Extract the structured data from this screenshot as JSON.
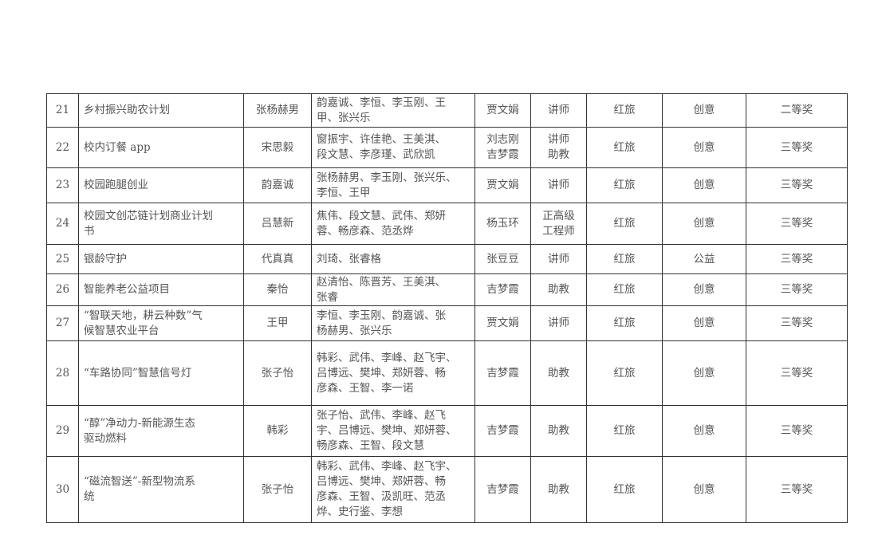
{
  "rows": [
    {
      "no": "21",
      "project": "乡村振兴助农计划",
      "leader": "张杨赫男",
      "members": "韵嘉诚、李恒、李玉刚、王\n甲、张兴乐",
      "advisor": "贾文娟",
      "title": "讲师",
      "track": "红旅",
      "category": "创意",
      "award": "二等奖"
    },
    {
      "no": "22",
      "project": "校内订餐 app",
      "leader": "宋思毅",
      "members": "窗振宇、许佳艳、王美淇、\n段文慧、李彦瑾、武欣凯",
      "advisor": "刘志刚\n吉梦霞",
      "title": "讲师\n助教",
      "track": "红旅",
      "category": "创意",
      "award": "三等奖"
    },
    {
      "no": "23",
      "project": "校园跑腿创业",
      "leader": "韵嘉诚",
      "members": "张杨赫男、李玉刚、张兴乐、\n李恒、王甲",
      "advisor": "贾文娟",
      "title": "讲师",
      "track": "红旅",
      "category": "创意",
      "award": "三等奖"
    },
    {
      "no": "24",
      "project": "校园文创芯链计划商业计划\n书",
      "leader": "吕慧新",
      "members": "焦伟、段文慧、武伟、郑妍\n蓉、畅彦森、范丞烨",
      "advisor": "杨玉环",
      "title": "正高级\n工程师",
      "track": "红旅",
      "category": "创意",
      "award": "三等奖"
    },
    {
      "no": "25",
      "project": "银龄守护",
      "leader": "代真真",
      "members": "刘琦、张睿格",
      "advisor": "张豆豆",
      "title": "讲师",
      "track": "红旅",
      "category": "公益",
      "award": "三等奖"
    },
    {
      "no": "26",
      "project": "智能养老公益项目",
      "leader": "秦怡",
      "members": "赵清怡、陈晋芳、王美淇、\n张睿",
      "advisor": "吉梦霞",
      "title": "助教",
      "track": "红旅",
      "category": "创意",
      "award": "三等奖"
    },
    {
      "no": "27",
      "project": "“智联天地，耕云种数”气\n候智慧农业平台",
      "leader": "王甲",
      "members": "李恒、李玉刚、韵嘉诚、张\n杨赫男、张兴乐",
      "advisor": "贾文娟",
      "title": "讲师",
      "track": "红旅",
      "category": "创意",
      "award": "三等奖"
    },
    {
      "no": "28",
      "project": "“车路协同”智慧信号灯",
      "leader": "张子怡",
      "members": "韩彩、武伟、李峰、赵飞宇、\n吕博远、樊坤、郑妍蓉、畅\n彦森、王智、李一诺",
      "advisor": "吉梦霞",
      "title": "助教",
      "track": "红旅",
      "category": "创意",
      "award": "三等奖"
    },
    {
      "no": "29",
      "project": "“醇”净动力-新能源生态\n驱动燃料",
      "leader": "韩彩",
      "members": "张子怡、武伟、李峰、赵飞\n宇、吕博远、樊坤、郑妍蓉、\n畅彦森、王智、段文慧",
      "advisor": "吉梦霞",
      "title": "助教",
      "track": "红旅",
      "category": "创意",
      "award": "三等奖"
    },
    {
      "no": "30",
      "project": "“磁流智送”-新型物流系\n统",
      "leader": "张子怡",
      "members": "韩彩、武伟、李峰、赵飞宇、\n吕博远、樊坤、郑妍蓉、畅\n彦森、王智、汲凯旺、范丞\n烨、史行鉴、李想",
      "advisor": "吉梦霞",
      "title": "助教",
      "track": "红旅",
      "category": "创意",
      "award": "三等奖"
    }
  ]
}
